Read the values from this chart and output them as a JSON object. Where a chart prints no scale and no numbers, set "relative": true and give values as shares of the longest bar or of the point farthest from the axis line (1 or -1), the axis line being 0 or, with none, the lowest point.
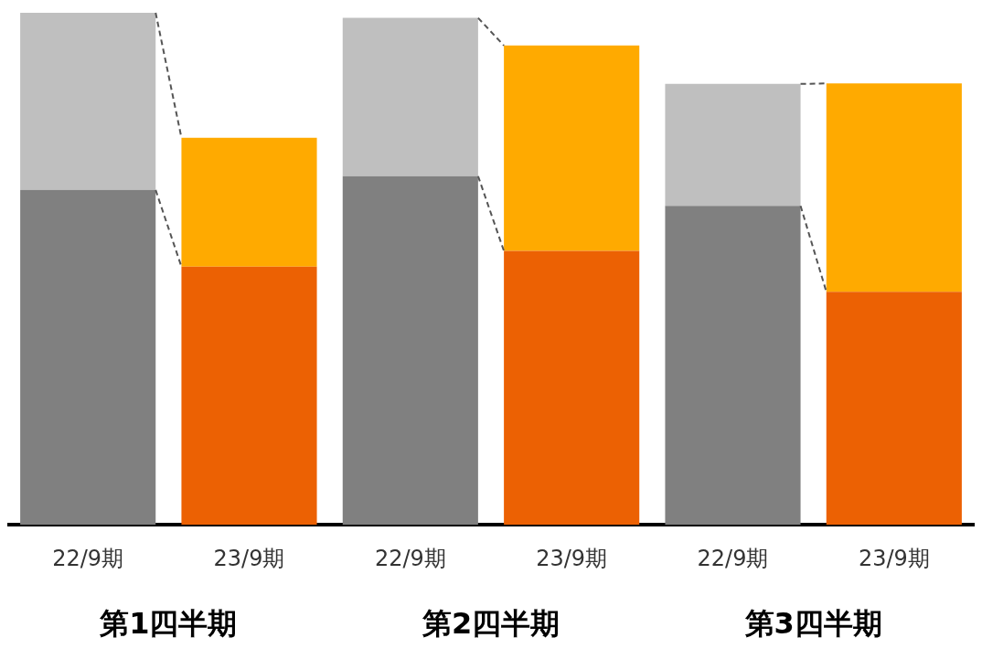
{
  "chart_data": {
    "type": "bar",
    "relative": true,
    "stacked": true,
    "categories": [
      "22/9期",
      "23/9期",
      "22/9期",
      "23/9期",
      "22/9期",
      "23/9期"
    ],
    "series": [
      {
        "colors": [
          "#808080",
          "#ec6103",
          "#808080",
          "#ec6103",
          "#808080",
          "#ec6103"
        ],
        "values": [
          0.654,
          0.504,
          0.681,
          0.535,
          0.623,
          0.455
        ]
      },
      {
        "colors": [
          "#bfbfbf",
          "#ffaa00",
          "#bfbfbf",
          "#ffaa00",
          "#bfbfbf",
          "#ffaa00"
        ],
        "values": [
          0.346,
          0.252,
          0.309,
          0.401,
          0.238,
          0.407
        ]
      }
    ],
    "annotations": [
      "第1四半期",
      "第2四半期",
      "第3四半期"
    ],
    "grid": false,
    "legend": false
  }
}
